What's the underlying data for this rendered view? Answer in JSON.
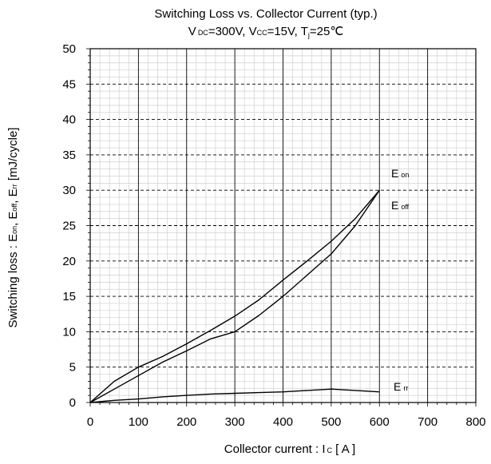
{
  "chart_data": {
    "type": "line",
    "title": "Switching Loss vs. Collector Current (typ.)",
    "subtitle": {
      "v1_main": "V",
      "v1_sub": "DC",
      "v1_val": "=300V, ",
      "v2_main": "V",
      "v2_sub": "CC",
      "v2_val": "=15V, ",
      "t_main": "T",
      "t_sub": "j",
      "t_val": "=25℃"
    },
    "xlabel": {
      "main": "Collector current : I",
      "sub": "C",
      "tail": " [ A ]"
    },
    "ylabel": {
      "p1": "Switching loss : E",
      "p1_sub": "on",
      "p2": ", E",
      "p2_sub": "off",
      "p3": ", E",
      "p3_sub": "rr",
      "p4": " [mJ/cycle]"
    },
    "xlim": [
      0,
      800
    ],
    "ylim": [
      0,
      50
    ],
    "x_ticks": [
      "0",
      "100",
      "200",
      "300",
      "400",
      "500",
      "600",
      "700",
      "800"
    ],
    "y_ticks": [
      "0",
      "5",
      "10",
      "15",
      "20",
      "25",
      "30",
      "35",
      "40",
      "45",
      "50"
    ],
    "grid": true,
    "series": [
      {
        "name": "E",
        "name_sub": "on",
        "x": [
          0,
          50,
          100,
          150,
          200,
          250,
          300,
          350,
          400,
          450,
          500,
          550,
          600
        ],
        "y": [
          0,
          3.0,
          5.0,
          6.5,
          8.3,
          10.2,
          12.2,
          14.5,
          17.3,
          20.0,
          22.8,
          26.0,
          30.0
        ]
      },
      {
        "name": "E",
        "name_sub": "off",
        "x": [
          0,
          50,
          100,
          150,
          200,
          250,
          300,
          350,
          400,
          450,
          500,
          550,
          600
        ],
        "y": [
          0,
          1.9,
          3.8,
          5.7,
          7.3,
          9.0,
          10.0,
          12.3,
          15.0,
          18.0,
          21.0,
          25.0,
          30.0
        ]
      },
      {
        "name": "E",
        "name_sub": "rr",
        "x": [
          0,
          50,
          100,
          150,
          200,
          250,
          300,
          350,
          400,
          450,
          500,
          550,
          600
        ],
        "y": [
          0,
          0.3,
          0.5,
          0.8,
          1.0,
          1.2,
          1.3,
          1.4,
          1.5,
          1.7,
          1.9,
          1.7,
          1.5
        ]
      }
    ]
  }
}
